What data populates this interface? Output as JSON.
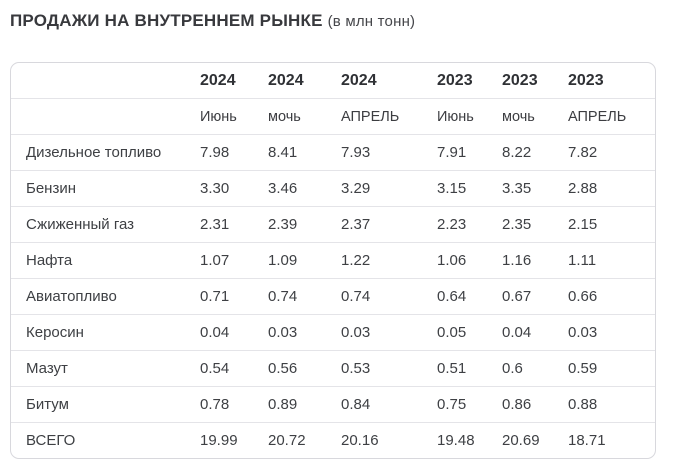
{
  "title": {
    "main": "ПРОДАЖИ НА ВНУТРЕННЕМ РЫНКЕ",
    "suffix": "(в млн тонн)"
  },
  "table": {
    "year_headers": [
      "2024",
      "2024",
      "2024",
      "2023",
      "2023",
      "2023"
    ],
    "month_headers": [
      "Июнь",
      "мочь",
      "АПРЕЛЬ",
      "Июнь",
      "мочь",
      "АПРЕЛЬ"
    ],
    "rows": [
      {
        "label": "Дизельное топливо",
        "values": [
          "7.98",
          "8.41",
          "7.93",
          "7.91",
          "8.22",
          "7.82"
        ]
      },
      {
        "label": "Бензин",
        "values": [
          "3.30",
          "3.46",
          "3.29",
          "3.15",
          "3.35",
          "2.88"
        ]
      },
      {
        "label": "Сжиженный газ",
        "values": [
          "2.31",
          "2.39",
          "2.37",
          "2.23",
          "2.35",
          "2.15"
        ]
      },
      {
        "label": "Нафта",
        "values": [
          "1.07",
          "1.09",
          "1.22",
          "1.06",
          "1.16",
          "1.11"
        ]
      },
      {
        "label": "Авиатопливо",
        "values": [
          "0.71",
          "0.74",
          "0.74",
          "0.64",
          "0.67",
          "0.66"
        ]
      },
      {
        "label": "Керосин",
        "values": [
          "0.04",
          "0.03",
          "0.03",
          "0.05",
          "0.04",
          "0.03"
        ]
      },
      {
        "label": "Мазут",
        "values": [
          "0.54",
          "0.56",
          "0.53",
          "0.51",
          "0.6",
          "0.59"
        ]
      },
      {
        "label": "Битум",
        "values": [
          "0.78",
          "0.89",
          "0.84",
          "0.75",
          "0.86",
          "0.88"
        ]
      },
      {
        "label": "ВСЕГО",
        "values": [
          "19.99",
          "20.72",
          "20.16",
          "19.48",
          "20.69",
          "18.71"
        ]
      }
    ],
    "colors": {
      "outer_border": "#d8d8dd",
      "row_divider": "#e4e4e8",
      "text": "#3e4044",
      "header_text": "#2f3135"
    }
  },
  "chart_data": {
    "type": "table",
    "title": "ПРОДАЖИ НА ВНУТРЕННЕМ РЫНКЕ (в млн тонн)",
    "columns": [
      "",
      "2024 Июнь",
      "2024 мочь",
      "2024 АПРЕЛЬ",
      "2023 Июнь",
      "2023 мочь",
      "2023 АПРЕЛЬ"
    ],
    "rows": [
      [
        "Дизельное топливо",
        7.98,
        8.41,
        7.93,
        7.91,
        8.22,
        7.82
      ],
      [
        "Бензин",
        3.3,
        3.46,
        3.29,
        3.15,
        3.35,
        2.88
      ],
      [
        "Сжиженный газ",
        2.31,
        2.39,
        2.37,
        2.23,
        2.35,
        2.15
      ],
      [
        "Нафта",
        1.07,
        1.09,
        1.22,
        1.06,
        1.16,
        1.11
      ],
      [
        "Авиатопливо",
        0.71,
        0.74,
        0.74,
        0.64,
        0.67,
        0.66
      ],
      [
        "Керосин",
        0.04,
        0.03,
        0.03,
        0.05,
        0.04,
        0.03
      ],
      [
        "Мазут",
        0.54,
        0.56,
        0.53,
        0.51,
        0.6,
        0.59
      ],
      [
        "Битум",
        0.78,
        0.89,
        0.84,
        0.75,
        0.86,
        0.88
      ],
      [
        "ВСЕГО",
        19.99,
        20.72,
        20.16,
        19.48,
        20.69,
        18.71
      ]
    ],
    "units": "млн тонн"
  }
}
